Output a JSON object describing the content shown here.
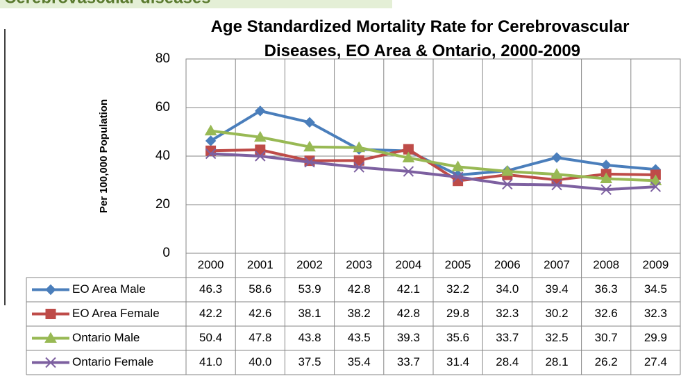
{
  "header": {
    "title": "Cerebrovascular diseases"
  },
  "chart_data": {
    "type": "line",
    "title": "Age Standardized Mortality Rate for Cerebrovascular Diseases, EO Area & Ontario, 2000-2009",
    "y_label": "Per 100,000 Population",
    "categories": [
      "2000",
      "2001",
      "2002",
      "2003",
      "2004",
      "2005",
      "2006",
      "2007",
      "2008",
      "2009"
    ],
    "ylim": [
      0,
      80
    ],
    "yticks": [
      0,
      20,
      40,
      60,
      80
    ],
    "grid": true,
    "series": [
      {
        "name": "EO Area Male",
        "color": "#4a7ebb",
        "marker": "diamond",
        "values": [
          46.3,
          58.6,
          53.9,
          42.8,
          42.1,
          32.2,
          34.0,
          39.4,
          36.3,
          34.5
        ],
        "value_labels": [
          "46.3",
          "58.6",
          "53.9",
          "42.8",
          "42.1",
          "32.2",
          "34.0",
          "39.4",
          "36.3",
          "34.5"
        ]
      },
      {
        "name": "EO Area Female",
        "color": "#be4b48",
        "marker": "square",
        "values": [
          42.2,
          42.6,
          38.1,
          38.2,
          42.8,
          29.8,
          32.3,
          30.2,
          32.6,
          32.3
        ],
        "value_labels": [
          "42.2",
          "42.6",
          "38.1",
          "38.2",
          "42.8",
          "29.8",
          "32.3",
          "30.2",
          "32.6",
          "32.3"
        ]
      },
      {
        "name": "Ontario Male",
        "color": "#98b954",
        "marker": "triangle",
        "values": [
          50.4,
          47.8,
          43.8,
          43.5,
          39.3,
          35.6,
          33.7,
          32.5,
          30.7,
          29.9
        ],
        "value_labels": [
          "50.4",
          "47.8",
          "43.8",
          "43.5",
          "39.3",
          "35.6",
          "33.7",
          "32.5",
          "30.7",
          "29.9"
        ]
      },
      {
        "name": "Ontario Female",
        "color": "#7d60a0",
        "marker": "x",
        "values": [
          41.0,
          40.0,
          37.5,
          35.4,
          33.7,
          31.4,
          28.4,
          28.1,
          26.2,
          27.4
        ],
        "value_labels": [
          "41.0",
          "40.0",
          "37.5",
          "35.4",
          "33.7",
          "31.4",
          "28.4",
          "28.1",
          "26.2",
          "27.4"
        ]
      }
    ]
  }
}
